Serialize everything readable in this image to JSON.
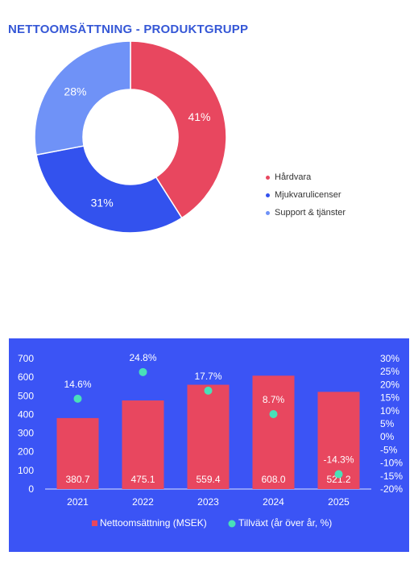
{
  "colors": {
    "hardvara": "#e8475f",
    "mjukvara": "#3352ee",
    "support": "#6f92f7",
    "panel_bg": "#3b54f5",
    "growth_marker": "#49e0b8",
    "title": "#3557d6"
  },
  "chart_data": [
    {
      "type": "pie",
      "title": "NETTOOMSÄTTNING - PRODUKTGRUPP",
      "donut": true,
      "categories": [
        "Hårdvara",
        "Mjukvarulicenser",
        "Support & tjänster"
      ],
      "values": [
        41,
        31,
        28
      ],
      "labels": [
        "41%",
        "31%",
        "28%"
      ],
      "legend_position": "right"
    },
    {
      "type": "bar",
      "categories": [
        "2021",
        "2022",
        "2023",
        "2024",
        "2025"
      ],
      "series": [
        {
          "name": "Nettoomsättning (MSEK)",
          "type": "bar",
          "axis": "left",
          "values": [
            380.7,
            475.1,
            559.4,
            608.0,
            521.2
          ],
          "labels": [
            "380.7",
            "475.1",
            "559.4",
            "608.0",
            "521.2"
          ]
        },
        {
          "name": "Tillväxt (år över år, %)",
          "type": "scatter",
          "axis": "right",
          "values": [
            14.6,
            24.8,
            17.7,
            8.7,
            -14.3
          ],
          "labels": [
            "14.6%",
            "24.8%",
            "17.7%",
            "8.7%",
            "-14.3%"
          ]
        }
      ],
      "ylim": [
        0,
        700
      ],
      "yticks": [
        "700",
        "600",
        "500",
        "400",
        "300",
        "200",
        "100",
        "0"
      ],
      "y2lim": [
        -20,
        30
      ],
      "y2ticks": [
        "30%",
        "25%",
        "20%",
        "15%",
        "10%",
        "5%",
        "0%",
        "-5%",
        "-10%",
        "-15%",
        "-20%"
      ],
      "legend_position": "bottom",
      "grid": false
    }
  ]
}
